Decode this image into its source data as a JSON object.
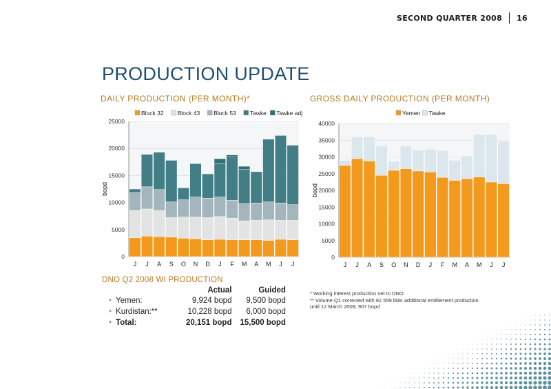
{
  "header": {
    "section": "SECOND QUARTER 2008",
    "page_number": "16"
  },
  "title": "PRODUCTION UPDATE",
  "left_chart_title": "DAILY PRODUCTION (PER MONTH)*",
  "right_chart_title": "GROSS DAILY PRODUCTION (PER MONTH)",
  "chart_data": [
    {
      "type": "bar",
      "stacked": true,
      "categories": [
        "J",
        "J",
        "A",
        "S",
        "O",
        "N",
        "D",
        "J",
        "F",
        "M",
        "A",
        "M",
        "J",
        "J"
      ],
      "series": [
        {
          "name": "Block 32",
          "color": "#f39a1e",
          "values": [
            3500,
            3800,
            3700,
            3600,
            3400,
            3300,
            3100,
            3200,
            3100,
            3100,
            3100,
            3000,
            3200,
            3100
          ]
        },
        {
          "name": "Block 43",
          "color": "#e3e3e3",
          "values": [
            5000,
            5000,
            4800,
            3600,
            3900,
            4000,
            4100,
            4200,
            4000,
            3500,
            3600,
            3800,
            3500,
            3600
          ]
        },
        {
          "name": "Block 53",
          "color": "#a3b6bd",
          "values": [
            3300,
            4100,
            3900,
            2900,
            3200,
            3700,
            3600,
            3600,
            3300,
            3200,
            3200,
            3300,
            3200,
            2900
          ]
        },
        {
          "name": "Tawke",
          "color": "#427e86",
          "values": [
            700,
            6000,
            6900,
            7700,
            2200,
            6200,
            4500,
            6200,
            8000,
            6300,
            5800,
            11600,
            12500,
            11000
          ]
        },
        {
          "name": "Tawke adj",
          "color": "#2f7078",
          "values": [
            0,
            0,
            0,
            0,
            0,
            0,
            0,
            900,
            400,
            600,
            0,
            0,
            0,
            0
          ]
        }
      ],
      "title": "DAILY PRODUCTION (PER MONTH)*",
      "xlabel": "",
      "ylabel": "bopd",
      "ylim": [
        0,
        25000
      ],
      "yticks": [
        0,
        5000,
        10000,
        15000,
        20000,
        25000
      ],
      "grid": true,
      "legend": "top"
    },
    {
      "type": "bar",
      "stacked": true,
      "categories": [
        "J",
        "J",
        "A",
        "S",
        "O",
        "N",
        "D",
        "J",
        "F",
        "M",
        "A",
        "M",
        "J",
        "J"
      ],
      "series": [
        {
          "name": "Yemen",
          "color": "#f39a1e",
          "values": [
            27500,
            29500,
            28800,
            24500,
            26000,
            26500,
            25800,
            25500,
            23900,
            23000,
            23500,
            24000,
            22500,
            22000
          ]
        },
        {
          "name": "Tawke",
          "color": "#dbe7ec",
          "values": [
            1500,
            6500,
            7200,
            8800,
            2700,
            6800,
            6200,
            6800,
            8000,
            6000,
            6800,
            12800,
            14200,
            12700
          ]
        }
      ],
      "title": "GROSS DAILY PRODUCTION (PER MONTH)",
      "xlabel": "",
      "ylabel": "bopd",
      "ylim": [
        0,
        40000
      ],
      "yticks": [
        0,
        5000,
        10000,
        15000,
        20000,
        25000,
        30000,
        35000,
        40000
      ],
      "grid": true,
      "legend": "top"
    }
  ],
  "wi_production": {
    "title": "DNO Q2 2008 WI PRODUCTION",
    "col_actual": "Actual",
    "col_guided": "Guided",
    "rows": [
      {
        "label": "Yemen:",
        "actual": "9,924 bopd",
        "guided": "9,500 bopd"
      },
      {
        "label": "Kurdistan:**",
        "actual": "10,228 bopd",
        "guided": "6,000 bopd"
      },
      {
        "label": "Total:",
        "actual": "20,151 bopd",
        "guided": "15,500 bopd"
      }
    ]
  },
  "notes": {
    "line1": "* Working interest production net to DNO",
    "line2": "** Volume Q1 corrected with 82 559 bbls additional entitlement production until 12 March 2008; 907 bopd"
  }
}
